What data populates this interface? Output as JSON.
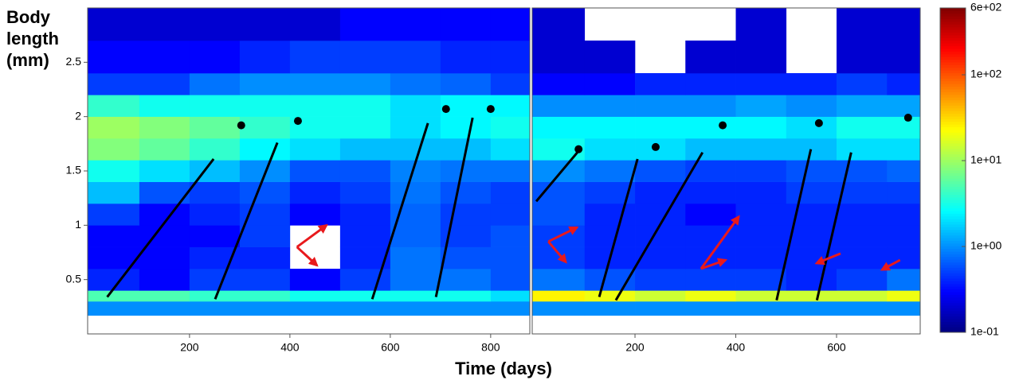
{
  "ylabel": "Body length (mm)",
  "xlabel": "Time (days)",
  "colorbar": {
    "scale": "log",
    "colormap": "jet",
    "lim": [
      0.1,
      600
    ],
    "ticks": [
      {
        "value": 600,
        "label": "6e+02"
      },
      {
        "value": 100,
        "label": "1e+02"
      },
      {
        "value": 10,
        "label": "1e+01"
      },
      {
        "value": 1,
        "label": "1e+00"
      },
      {
        "value": 0.1,
        "label": "1e-01"
      }
    ]
  },
  "chart_data": [
    {
      "type": "heatmap",
      "xlim": [
        -3,
        878
      ],
      "ylim": [
        0,
        3.0
      ],
      "xticks": [
        200,
        400,
        600,
        800
      ],
      "yticks": [
        0.5,
        1.0,
        1.5,
        2.0,
        2.5
      ],
      "line_color": "#000000",
      "arrow_color": "#e8191c",
      "x_bins": [
        -3,
        100,
        200,
        300,
        400,
        500,
        600,
        700,
        800,
        878
      ],
      "y_bins": [
        0.17,
        0.3,
        0.4,
        0.6,
        0.8,
        1.0,
        1.2,
        1.4,
        1.6,
        1.8,
        2.0,
        2.2,
        2.4,
        2.7,
        3.0
      ],
      "z": [
        [
          1,
          1,
          1,
          1,
          1,
          1,
          1,
          1,
          1
        ],
        [
          5,
          5,
          4,
          4,
          3,
          3,
          3,
          3,
          2
        ],
        [
          0.4,
          0.3,
          0.5,
          0.5,
          0.3,
          0.5,
          0.8,
          0.8,
          0.6
        ],
        [
          0.3,
          0.3,
          0.4,
          0.4,
          null,
          0.4,
          0.8,
          0.6,
          0.6
        ],
        [
          0.3,
          0.3,
          0.3,
          0.5,
          null,
          0.4,
          0.7,
          0.5,
          0.6
        ],
        [
          0.5,
          0.3,
          0.4,
          0.5,
          0.3,
          0.4,
          0.7,
          0.5,
          0.5
        ],
        [
          1.5,
          0.6,
          0.5,
          0.6,
          0.4,
          0.5,
          0.8,
          0.6,
          0.5
        ],
        [
          3,
          2,
          1.5,
          1,
          0.6,
          0.6,
          0.9,
          0.8,
          0.8
        ],
        [
          8,
          6,
          4,
          2.5,
          2,
          1.5,
          1.5,
          1.5,
          2
        ],
        [
          10,
          8,
          6,
          4,
          3,
          3,
          2,
          2.5,
          3
        ],
        [
          4,
          3,
          3,
          3,
          3,
          3,
          2,
          2.5,
          2.5
        ],
        [
          0.5,
          0.5,
          0.8,
          1,
          1,
          1,
          0.8,
          0.7,
          0.5
        ],
        [
          0.3,
          0.3,
          0.3,
          0.4,
          0.5,
          0.5,
          0.5,
          0.4,
          0.4
        ],
        [
          0.2,
          0.2,
          0.2,
          0.2,
          0.2,
          0.3,
          0.3,
          0.3,
          0.3
        ]
      ],
      "lines": [
        {
          "from": [
            36,
            0.34
          ],
          "to": [
            248,
            1.61
          ]
        },
        {
          "from": [
            251,
            0.32
          ],
          "to": [
            375,
            1.76
          ]
        },
        {
          "from": [
            564,
            0.32
          ],
          "to": [
            675,
            1.94
          ]
        },
        {
          "from": [
            691,
            0.34
          ],
          "to": [
            764,
            1.99
          ]
        }
      ],
      "points": [
        {
          "x": 303,
          "y": 1.92
        },
        {
          "x": 416,
          "y": 1.96
        },
        {
          "x": 711,
          "y": 2.07
        },
        {
          "x": 800,
          "y": 2.07
        }
      ],
      "arrows": [
        {
          "from": [
            414,
            0.8
          ],
          "to": [
            473,
            1.0
          ]
        },
        {
          "from": [
            414,
            0.8
          ],
          "to": [
            454,
            0.63
          ]
        }
      ]
    },
    {
      "type": "heatmap",
      "xlim": [
        -4,
        766
      ],
      "ylim": [
        0,
        3.0
      ],
      "xticks": [
        200,
        400,
        600
      ],
      "line_color": "#000000",
      "arrow_color": "#e8191c",
      "x_bins": [
        -4,
        100,
        200,
        300,
        400,
        500,
        600,
        700,
        766
      ],
      "y_bins": [
        0.17,
        0.3,
        0.4,
        0.6,
        0.8,
        1.0,
        1.2,
        1.4,
        1.6,
        1.8,
        2.0,
        2.2,
        2.4,
        2.7,
        3.0
      ],
      "z": [
        [
          1,
          1,
          1,
          1,
          1,
          1,
          1,
          1
        ],
        [
          25,
          20,
          15,
          20,
          15,
          15,
          15,
          20
        ],
        [
          0.8,
          0.6,
          0.5,
          0.5,
          0.5,
          0.4,
          0.5,
          0.8
        ],
        [
          0.5,
          0.4,
          0.4,
          0.4,
          0.4,
          0.4,
          0.4,
          0.4
        ],
        [
          0.5,
          0.4,
          0.4,
          0.4,
          0.4,
          0.4,
          0.4,
          0.4
        ],
        [
          0.6,
          0.4,
          0.4,
          0.3,
          0.4,
          0.4,
          0.4,
          0.4
        ],
        [
          0.6,
          0.5,
          0.4,
          0.4,
          0.4,
          0.5,
          0.5,
          0.5
        ],
        [
          1,
          0.8,
          0.6,
          0.5,
          0.5,
          0.6,
          0.6,
          0.7
        ],
        [
          3,
          2,
          2,
          1.5,
          1.5,
          1.5,
          2,
          2
        ],
        [
          2.5,
          2.5,
          2.5,
          2.5,
          2.5,
          2,
          3,
          3
        ],
        [
          1,
          1,
          1,
          1,
          1.2,
          1,
          1.2,
          1.2
        ],
        [
          0.3,
          0.3,
          0.4,
          0.4,
          0.4,
          0.4,
          0.5,
          0.4
        ],
        [
          0.2,
          0.2,
          null,
          0.2,
          0.2,
          null,
          0.2,
          0.2
        ],
        [
          0.2,
          null,
          null,
          null,
          0.2,
          null,
          0.2,
          0.2
        ]
      ],
      "lines": [
        {
          "from": [
            4,
            1.22
          ],
          "to": [
            91,
            1.7
          ]
        },
        {
          "from": [
            129,
            0.34
          ],
          "to": [
            205,
            1.61
          ]
        },
        {
          "from": [
            162,
            0.31
          ],
          "to": [
            334,
            1.67
          ]
        },
        {
          "from": [
            481,
            0.31
          ],
          "to": [
            549,
            1.7
          ]
        },
        {
          "from": [
            561,
            0.31
          ],
          "to": [
            629,
            1.67
          ]
        }
      ],
      "points": [
        {
          "x": 88,
          "y": 1.7
        },
        {
          "x": 241,
          "y": 1.72
        },
        {
          "x": 374,
          "y": 1.92
        },
        {
          "x": 565,
          "y": 1.94
        },
        {
          "x": 742,
          "y": 1.99
        }
      ],
      "arrows": [
        {
          "from": [
            28,
            0.85
          ],
          "to": [
            85,
            0.98
          ]
        },
        {
          "from": [
            28,
            0.85
          ],
          "to": [
            63,
            0.66
          ]
        },
        {
          "from": [
            331,
            0.6
          ],
          "to": [
            406,
            1.08
          ]
        },
        {
          "from": [
            331,
            0.6
          ],
          "to": [
            380,
            0.68
          ]
        },
        {
          "from": [
            608,
            0.74
          ],
          "to": [
            560,
            0.65
          ]
        },
        {
          "from": [
            726,
            0.68
          ],
          "to": [
            690,
            0.59
          ]
        }
      ]
    }
  ]
}
